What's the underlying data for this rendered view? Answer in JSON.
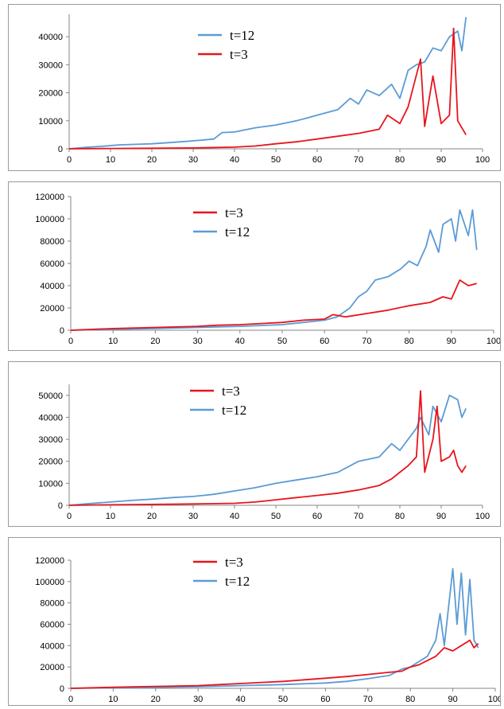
{
  "colors": {
    "t3": "#e8141b",
    "t12": "#5b9bd5"
  },
  "chart_data": [
    {
      "type": "line",
      "xlim": [
        0,
        100
      ],
      "ylim": [
        0,
        48000
      ],
      "xticks": [
        "0",
        "10",
        "20",
        "30",
        "40",
        "50",
        "60",
        "70",
        "80",
        "90",
        "100"
      ],
      "yticks": [
        "0",
        "10000",
        "20000",
        "30000",
        "40000"
      ],
      "legend_order": [
        "t=12",
        "t=3"
      ],
      "series": [
        {
          "name": "t=12",
          "color": "#5b9bd5",
          "points": [
            [
              0,
              0
            ],
            [
              4,
              500
            ],
            [
              8,
              900
            ],
            [
              12,
              1400
            ],
            [
              16,
              1600
            ],
            [
              20,
              1800
            ],
            [
              24,
              2200
            ],
            [
              28,
              2600
            ],
            [
              32,
              3100
            ],
            [
              35,
              3500
            ],
            [
              37,
              5800
            ],
            [
              40,
              6000
            ],
            [
              45,
              7500
            ],
            [
              50,
              8500
            ],
            [
              55,
              10000
            ],
            [
              60,
              12000
            ],
            [
              65,
              14000
            ],
            [
              68,
              18000
            ],
            [
              70,
              16000
            ],
            [
              72,
              21000
            ],
            [
              75,
              19000
            ],
            [
              78,
              23000
            ],
            [
              80,
              18000
            ],
            [
              82,
              28000
            ],
            [
              84,
              30000
            ],
            [
              86,
              31000
            ],
            [
              88,
              36000
            ],
            [
              90,
              35000
            ],
            [
              92,
              40000
            ],
            [
              94,
              42000
            ],
            [
              95,
              35000
            ],
            [
              96,
              47000
            ]
          ]
        },
        {
          "name": "t=3",
          "color": "#e8141b",
          "points": [
            [
              0,
              0
            ],
            [
              10,
              100
            ],
            [
              20,
              200
            ],
            [
              30,
              300
            ],
            [
              40,
              600
            ],
            [
              45,
              1000
            ],
            [
              50,
              1800
            ],
            [
              55,
              2500
            ],
            [
              60,
              3500
            ],
            [
              65,
              4500
            ],
            [
              70,
              5500
            ],
            [
              75,
              7000
            ],
            [
              77,
              12000
            ],
            [
              80,
              9000
            ],
            [
              82,
              15000
            ],
            [
              85,
              32000
            ],
            [
              86,
              8000
            ],
            [
              88,
              26000
            ],
            [
              90,
              9000
            ],
            [
              92,
              12000
            ],
            [
              93,
              43000
            ],
            [
              94,
              10000
            ],
            [
              96,
              5000
            ]
          ]
        }
      ]
    },
    {
      "type": "line",
      "xlim": [
        0,
        100
      ],
      "ylim": [
        0,
        120000
      ],
      "xticks": [
        "0",
        "10",
        "20",
        "30",
        "40",
        "50",
        "60",
        "70",
        "80",
        "90",
        "100"
      ],
      "yticks": [
        "0",
        "20000",
        "40000",
        "60000",
        "80000",
        "100000",
        "120000"
      ],
      "legend_order": [
        "t=3",
        "t=12"
      ],
      "series": [
        {
          "name": "t=12",
          "color": "#5b9bd5",
          "points": [
            [
              0,
              0
            ],
            [
              10,
              800
            ],
            [
              20,
              1500
            ],
            [
              30,
              2500
            ],
            [
              40,
              3500
            ],
            [
              50,
              5000
            ],
            [
              55,
              7000
            ],
            [
              60,
              9000
            ],
            [
              63,
              12000
            ],
            [
              66,
              20000
            ],
            [
              68,
              30000
            ],
            [
              70,
              35000
            ],
            [
              72,
              45000
            ],
            [
              75,
              48000
            ],
            [
              78,
              55000
            ],
            [
              80,
              62000
            ],
            [
              82,
              58000
            ],
            [
              84,
              75000
            ],
            [
              85,
              90000
            ],
            [
              87,
              70000
            ],
            [
              88,
              95000
            ],
            [
              90,
              100000
            ],
            [
              91,
              80000
            ],
            [
              92,
              108000
            ],
            [
              94,
              85000
            ],
            [
              95,
              108000
            ],
            [
              96,
              72000
            ]
          ]
        },
        {
          "name": "t=3",
          "color": "#e8141b",
          "points": [
            [
              0,
              0
            ],
            [
              10,
              1500
            ],
            [
              20,
              2500
            ],
            [
              30,
              3500
            ],
            [
              35,
              4500
            ],
            [
              40,
              5000
            ],
            [
              45,
              6000
            ],
            [
              50,
              7000
            ],
            [
              55,
              9000
            ],
            [
              60,
              10000
            ],
            [
              62,
              14000
            ],
            [
              65,
              12000
            ],
            [
              70,
              15000
            ],
            [
              75,
              18000
            ],
            [
              80,
              22000
            ],
            [
              85,
              25000
            ],
            [
              88,
              30000
            ],
            [
              90,
              28000
            ],
            [
              92,
              45000
            ],
            [
              94,
              40000
            ],
            [
              96,
              42000
            ]
          ]
        }
      ]
    },
    {
      "type": "line",
      "xlim": [
        0,
        100
      ],
      "ylim": [
        0,
        55000
      ],
      "xticks": [
        "0",
        "10",
        "20",
        "30",
        "40",
        "50",
        "60",
        "70",
        "80",
        "90",
        "100"
      ],
      "yticks": [
        "0",
        "10000",
        "20000",
        "30000",
        "40000",
        "50000"
      ],
      "legend_order": [
        "t=3",
        "t=12"
      ],
      "series": [
        {
          "name": "t=12",
          "color": "#5b9bd5",
          "points": [
            [
              0,
              0
            ],
            [
              5,
              800
            ],
            [
              10,
              1500
            ],
            [
              15,
              2200
            ],
            [
              20,
              2800
            ],
            [
              25,
              3500
            ],
            [
              30,
              4000
            ],
            [
              35,
              5000
            ],
            [
              40,
              6500
            ],
            [
              45,
              8000
            ],
            [
              50,
              10000
            ],
            [
              55,
              11500
            ],
            [
              60,
              13000
            ],
            [
              65,
              15000
            ],
            [
              70,
              20000
            ],
            [
              75,
              22000
            ],
            [
              78,
              28000
            ],
            [
              80,
              25000
            ],
            [
              82,
              30000
            ],
            [
              84,
              35000
            ],
            [
              85,
              40000
            ],
            [
              87,
              32000
            ],
            [
              88,
              45000
            ],
            [
              90,
              38000
            ],
            [
              92,
              50000
            ],
            [
              94,
              48000
            ],
            [
              95,
              40000
            ],
            [
              96,
              44000
            ]
          ]
        },
        {
          "name": "t=3",
          "color": "#e8141b",
          "points": [
            [
              0,
              0
            ],
            [
              10,
              200
            ],
            [
              20,
              400
            ],
            [
              30,
              600
            ],
            [
              40,
              900
            ],
            [
              45,
              1500
            ],
            [
              50,
              2500
            ],
            [
              55,
              3500
            ],
            [
              60,
              4500
            ],
            [
              65,
              5500
            ],
            [
              70,
              7000
            ],
            [
              75,
              9000
            ],
            [
              78,
              12000
            ],
            [
              80,
              15000
            ],
            [
              82,
              18000
            ],
            [
              84,
              22000
            ],
            [
              85,
              52000
            ],
            [
              86,
              15000
            ],
            [
              88,
              30000
            ],
            [
              89,
              45000
            ],
            [
              90,
              20000
            ],
            [
              92,
              22000
            ],
            [
              93,
              25000
            ],
            [
              94,
              18000
            ],
            [
              95,
              15000
            ],
            [
              96,
              18000
            ]
          ]
        }
      ]
    },
    {
      "type": "line",
      "xlim": [
        0,
        100
      ],
      "ylim": [
        0,
        120000
      ],
      "xticks": [
        "0",
        "10",
        "20",
        "30",
        "40",
        "50",
        "60",
        "70",
        "80",
        "90",
        "100"
      ],
      "yticks": [
        "0",
        "20000",
        "40000",
        "60000",
        "80000",
        "100000",
        "120000"
      ],
      "legend_order": [
        "t=3",
        "t=12"
      ],
      "series": [
        {
          "name": "t=12",
          "color": "#5b9bd5",
          "points": [
            [
              0,
              0
            ],
            [
              10,
              400
            ],
            [
              20,
              800
            ],
            [
              30,
              1500
            ],
            [
              40,
              2500
            ],
            [
              50,
              3500
            ],
            [
              60,
              5000
            ],
            [
              65,
              6500
            ],
            [
              70,
              9000
            ],
            [
              75,
              12000
            ],
            [
              78,
              18000
            ],
            [
              80,
              20000
            ],
            [
              82,
              25000
            ],
            [
              84,
              30000
            ],
            [
              86,
              45000
            ],
            [
              87,
              70000
            ],
            [
              88,
              40000
            ],
            [
              90,
              112000
            ],
            [
              91,
              60000
            ],
            [
              92,
              108000
            ],
            [
              93,
              50000
            ],
            [
              94,
              102000
            ],
            [
              95,
              45000
            ],
            [
              96,
              38000
            ]
          ]
        },
        {
          "name": "t=3",
          "color": "#e8141b",
          "points": [
            [
              0,
              0
            ],
            [
              10,
              1000
            ],
            [
              20,
              1800
            ],
            [
              30,
              2500
            ],
            [
              35,
              3500
            ],
            [
              40,
              4500
            ],
            [
              45,
              5500
            ],
            [
              50,
              6500
            ],
            [
              55,
              8000
            ],
            [
              60,
              9500
            ],
            [
              65,
              11000
            ],
            [
              70,
              13000
            ],
            [
              75,
              15000
            ],
            [
              78,
              16000
            ],
            [
              80,
              20000
            ],
            [
              82,
              22000
            ],
            [
              84,
              26000
            ],
            [
              86,
              30000
            ],
            [
              88,
              38000
            ],
            [
              90,
              35000
            ],
            [
              92,
              40000
            ],
            [
              94,
              45000
            ],
            [
              95,
              38000
            ],
            [
              96,
              42000
            ]
          ]
        }
      ]
    }
  ]
}
